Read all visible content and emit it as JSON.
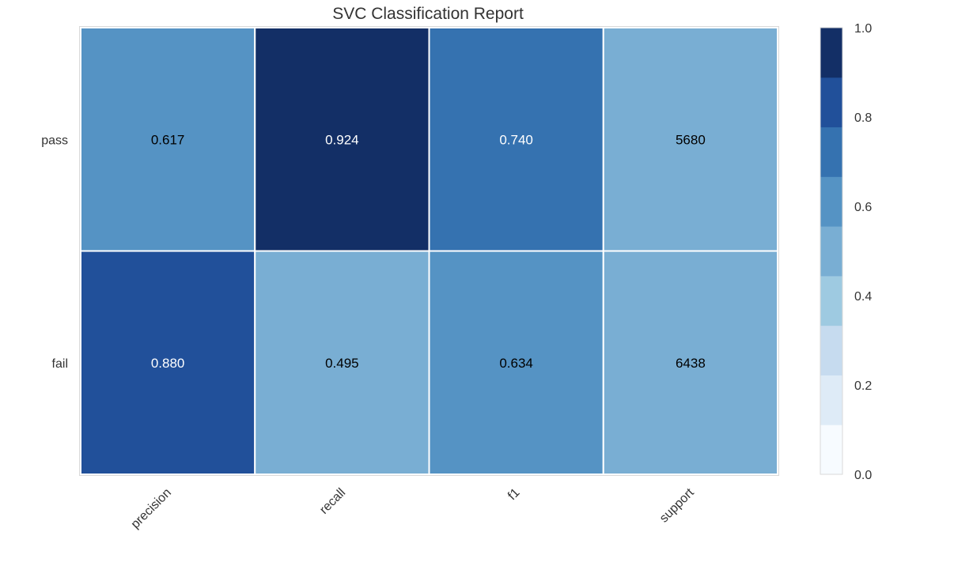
{
  "chart_data": {
    "type": "heatmap",
    "title": "SVC Classification Report",
    "x_categories": [
      "precision",
      "recall",
      "f1",
      "support"
    ],
    "y_categories": [
      "pass",
      "fail"
    ],
    "cells": [
      {
        "row": "pass",
        "column": "precision",
        "value": 0.617,
        "label": "0.617"
      },
      {
        "row": "pass",
        "column": "recall",
        "value": 0.924,
        "label": "0.924"
      },
      {
        "row": "pass",
        "column": "f1",
        "value": 0.74,
        "label": "0.740"
      },
      {
        "row": "pass",
        "column": "support",
        "value": 0.469,
        "label": "5680"
      },
      {
        "row": "fail",
        "column": "precision",
        "value": 0.88,
        "label": "0.880"
      },
      {
        "row": "fail",
        "column": "recall",
        "value": 0.495,
        "label": "0.495"
      },
      {
        "row": "fail",
        "column": "f1",
        "value": 0.634,
        "label": "0.634"
      },
      {
        "row": "fail",
        "column": "support",
        "value": 0.531,
        "label": "6438"
      }
    ],
    "colorbar": {
      "range": [
        0.0,
        1.0
      ],
      "ticks": [
        "0.0",
        "0.2",
        "0.4",
        "0.6",
        "0.8",
        "1.0"
      ],
      "colormap": "Blues",
      "levels": [
        "#f7fbff",
        "#deebf7",
        "#c6dbef",
        "#9ecae1",
        "#79aed3",
        "#5593c4",
        "#3572b0",
        "#21509a",
        "#132f66"
      ]
    },
    "grid": false
  }
}
